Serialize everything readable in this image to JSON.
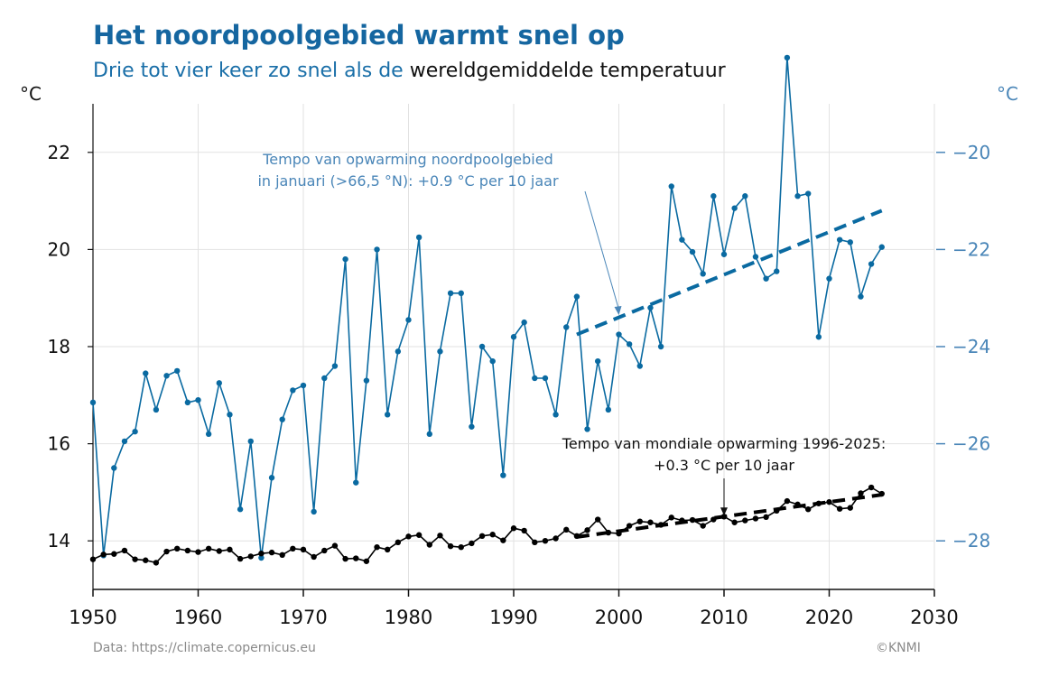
{
  "header": {
    "title": "Het noordpoolgebied warmt snel op",
    "subtitle_blue": "Drie tot vier keer zo snel als de",
    "subtitle_black": "wereldgemiddelde temperatuur",
    "unit_left": "°C",
    "unit_right": "°C"
  },
  "footer": {
    "source": "Data: https://climate.copernicus.eu",
    "credit": "©KNMI"
  },
  "colors": {
    "arctic": "#0a6aa1",
    "arctic_light": "#4a86b8",
    "global": "#000000",
    "grid": "#e2e2e2"
  },
  "chart_data": {
    "type": "line",
    "xlabel": "",
    "ylabel_left": "°C",
    "ylabel_right": "°C",
    "xlim": [
      1950,
      2030
    ],
    "ylim_left": [
      13,
      23
    ],
    "ylim_right": [
      -29,
      -19
    ],
    "xticks": [
      "1950",
      "1960",
      "1970",
      "1980",
      "1990",
      "2000",
      "2010",
      "2020",
      "2030"
    ],
    "yticks_left": [
      "14",
      "16",
      "18",
      "20",
      "22"
    ],
    "yticks_right": [
      "−28",
      "−26",
      "−24",
      "−22",
      "−20"
    ],
    "grid": true,
    "series": [
      {
        "axis": "right",
        "x": [
          1950,
          1951,
          1952,
          1953,
          1954,
          1955,
          1956,
          1957,
          1958,
          1959,
          1960,
          1961,
          1962,
          1963,
          1964,
          1965,
          1966,
          1967,
          1968,
          1969,
          1970,
          1971,
          1972,
          1973,
          1974,
          1975,
          1976,
          1977,
          1978,
          1979,
          1980,
          1981,
          1982,
          1983,
          1984,
          1985,
          1986,
          1987,
          1988,
          1989,
          1990,
          1991,
          1992,
          1993,
          1994,
          1995,
          1996,
          1997,
          1998,
          1999,
          2000,
          2001,
          2002,
          2003,
          2004,
          2005,
          2006,
          2007,
          2008,
          2009,
          2010,
          2011,
          2012,
          2013,
          2014,
          2015,
          2016,
          2017,
          2018,
          2019,
          2020,
          2021,
          2022,
          2023,
          2024,
          2025
        ],
        "values": [
          -25.15,
          -28.3,
          -26.5,
          -25.95,
          -25.75,
          -24.55,
          -25.3,
          -24.6,
          -24.5,
          -25.15,
          -25.1,
          -25.8,
          -24.75,
          -25.4,
          -27.35,
          -25.95,
          -28.35,
          -26.7,
          -25.5,
          -24.9,
          -24.8,
          -27.4,
          -24.65,
          -24.4,
          -22.2,
          -26.8,
          -24.7,
          -22.0,
          -25.4,
          -24.1,
          -23.45,
          -21.75,
          -25.8,
          -24.1,
          -22.9,
          -22.9,
          -25.65,
          -24.0,
          -24.3,
          -26.65,
          -23.8,
          -23.5,
          -24.65,
          -24.65,
          -25.4,
          -23.6,
          -22.97,
          -25.7,
          -24.3,
          -25.3,
          -23.75,
          -23.95,
          -24.4,
          -23.2,
          -24.0,
          -20.7,
          -21.8,
          -22.05,
          -22.5,
          -20.9,
          -22.1,
          -21.15,
          -20.9,
          -22.15,
          -22.6,
          -22.45,
          -18.05,
          -20.9,
          -20.85,
          -23.8,
          -22.6,
          -21.8,
          -21.85,
          -22.97,
          -22.3,
          -21.95
        ]
      },
      {
        "axis": "left",
        "x": [
          1950,
          1951,
          1952,
          1953,
          1954,
          1955,
          1956,
          1957,
          1958,
          1959,
          1960,
          1961,
          1962,
          1963,
          1964,
          1965,
          1966,
          1967,
          1968,
          1969,
          1970,
          1971,
          1972,
          1973,
          1974,
          1975,
          1976,
          1977,
          1978,
          1979,
          1980,
          1981,
          1982,
          1983,
          1984,
          1985,
          1986,
          1987,
          1988,
          1989,
          1990,
          1991,
          1992,
          1993,
          1994,
          1995,
          1996,
          1997,
          1998,
          1999,
          2000,
          2001,
          2002,
          2003,
          2004,
          2005,
          2006,
          2007,
          2008,
          2009,
          2010,
          2011,
          2012,
          2013,
          2014,
          2015,
          2016,
          2017,
          2018,
          2019,
          2020,
          2021,
          2022,
          2023,
          2024,
          2025
        ],
        "values": [
          13.62,
          13.72,
          13.73,
          13.8,
          13.62,
          13.6,
          13.55,
          13.78,
          13.84,
          13.8,
          13.77,
          13.84,
          13.79,
          13.82,
          13.63,
          13.68,
          13.74,
          13.76,
          13.71,
          13.84,
          13.82,
          13.67,
          13.8,
          13.9,
          13.63,
          13.64,
          13.58,
          13.87,
          13.82,
          13.97,
          14.09,
          14.12,
          13.92,
          14.11,
          13.89,
          13.87,
          13.95,
          14.1,
          14.13,
          14.01,
          14.26,
          14.21,
          13.97,
          14.0,
          14.05,
          14.23,
          14.1,
          14.22,
          14.44,
          14.17,
          14.15,
          14.31,
          14.4,
          14.38,
          14.33,
          14.48,
          14.42,
          14.43,
          14.31,
          14.44,
          14.5,
          14.38,
          14.42,
          14.46,
          14.49,
          14.62,
          14.82,
          14.75,
          14.65,
          14.77,
          14.8,
          14.66,
          14.68,
          14.98,
          15.1,
          14.97
        ]
      }
    ],
    "trends": [
      {
        "axis": "right",
        "x": [
          1996,
          2025
        ],
        "values": [
          -23.75,
          -21.2
        ]
      },
      {
        "axis": "left",
        "x": [
          1996,
          2025
        ],
        "values": [
          14.08,
          14.95
        ]
      }
    ],
    "annotations": {
      "arctic": [
        "Tempo van opwarming noordpoolgebied",
        "in januari (>66,5 °N): +0.9 °C per 10 jaar"
      ],
      "global": [
        "Tempo van mondiale opwarming 1996-2025:",
        "+0.3 °C per 10 jaar"
      ],
      "arctic_arrow_to": [
        2000,
        -23.35
      ],
      "global_arrow_to": [
        2010,
        14.5
      ]
    }
  }
}
